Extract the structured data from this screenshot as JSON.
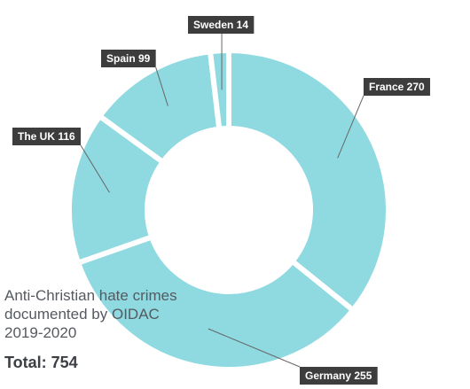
{
  "caption": {
    "line1": "Anti-Christian hate crimes",
    "line2": "documented by OIDAC",
    "line3": "2019-2020",
    "total": "Total: 754"
  },
  "chart_data": {
    "type": "pie",
    "donut": true,
    "title": "",
    "start_angle_deg": 0,
    "slice_color": "#8fd9e0",
    "separator_color": "#ffffff",
    "label_bg": "#3d3d3d",
    "leader_color": "#666666",
    "slices": [
      {
        "name": "France",
        "value": 270,
        "label": "France 270"
      },
      {
        "name": "Germany",
        "value": 255,
        "label": "Germany 255"
      },
      {
        "name": "The UK",
        "value": 116,
        "label": "The UK 116"
      },
      {
        "name": "Spain",
        "value": 99,
        "label": "Spain 99"
      },
      {
        "name": "Sweden",
        "value": 14,
        "label": "Sweden 14"
      }
    ],
    "total": 754
  }
}
